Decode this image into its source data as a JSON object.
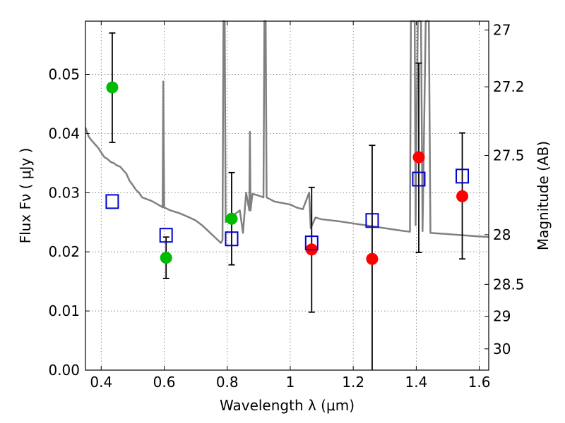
{
  "chart_data": {
    "type": "scatter",
    "xlabel": "Wavelength  λ (μm)",
    "ylabel": "Flux  Fν  ( μJy )",
    "y2label": "Magnitude (AB)",
    "xlim": [
      0.35,
      1.63
    ],
    "ylim": [
      0.0,
      0.059
    ],
    "grid": true,
    "x_ticks": [
      0.4,
      0.6,
      0.8,
      1.0,
      1.2,
      1.4,
      1.6
    ],
    "x_tick_labels": [
      "0.4",
      "0.6",
      "0.8",
      "1",
      "1.2",
      "1.4",
      "1.6"
    ],
    "y_ticks": [
      0.0,
      0.01,
      0.02,
      0.03,
      0.04,
      0.05
    ],
    "y_tick_labels": [
      "0.00",
      "0.01",
      "0.02",
      "0.03",
      "0.04",
      "0.05"
    ],
    "y2_ticks": [
      {
        "label": "27",
        "flux": 0.0575
      },
      {
        "label": "27.2",
        "flux": 0.0479
      },
      {
        "label": "27.5",
        "flux": 0.0363
      },
      {
        "label": "28",
        "flux": 0.0229
      },
      {
        "label": "28.5",
        "flux": 0.0145
      },
      {
        "label": "29",
        "flux": 0.0091
      },
      {
        "label": "30",
        "flux": 0.0036
      }
    ],
    "colors": {
      "green": "#00bb00",
      "red": "#ff0000",
      "model_box": "#0000cc",
      "sed": "#808080",
      "errorbar": "#000000"
    },
    "series": [
      {
        "marker": "circle",
        "color": "green",
        "points": [
          {
            "x": 0.435,
            "y": 0.0478,
            "ylo": 0.0385,
            "yhi": 0.057
          },
          {
            "x": 0.606,
            "y": 0.019,
            "ylo": 0.0155,
            "yhi": 0.0225
          },
          {
            "x": 0.814,
            "y": 0.0256,
            "ylo": 0.0178,
            "yhi": 0.0334
          }
        ]
      },
      {
        "marker": "circle",
        "color": "red",
        "points": [
          {
            "x": 1.068,
            "y": 0.0204,
            "ylo": 0.0098,
            "yhi": 0.0309
          },
          {
            "x": 1.26,
            "y": 0.0188,
            "ylo": 0.0,
            "yhi": 0.038
          },
          {
            "x": 1.408,
            "y": 0.036,
            "ylo": 0.0199,
            "yhi": 0.0519
          },
          {
            "x": 1.546,
            "y": 0.0294,
            "ylo": 0.0188,
            "yhi": 0.0401
          }
        ]
      },
      {
        "marker": "square",
        "color": "model_box",
        "points": [
          {
            "x": 0.435,
            "y": 0.0285
          },
          {
            "x": 0.606,
            "y": 0.0228
          },
          {
            "x": 0.814,
            "y": 0.0222
          },
          {
            "x": 1.068,
            "y": 0.0215
          },
          {
            "x": 1.26,
            "y": 0.0253
          },
          {
            "x": 1.408,
            "y": 0.0323
          },
          {
            "x": 1.546,
            "y": 0.0328
          }
        ]
      },
      {
        "marker": "line",
        "color": "sed",
        "points": [
          [
            0.35,
            0.041
          ],
          [
            0.36,
            0.0395
          ],
          [
            0.37,
            0.0388
          ],
          [
            0.38,
            0.0382
          ],
          [
            0.39,
            0.0376
          ],
          [
            0.4,
            0.0368
          ],
          [
            0.41,
            0.036
          ],
          [
            0.42,
            0.0357
          ],
          [
            0.43,
            0.0352
          ],
          [
            0.44,
            0.035
          ],
          [
            0.45,
            0.0346
          ],
          [
            0.46,
            0.0344
          ],
          [
            0.47,
            0.0338
          ],
          [
            0.48,
            0.0332
          ],
          [
            0.49,
            0.032
          ],
          [
            0.5,
            0.0313
          ],
          [
            0.51,
            0.0305
          ],
          [
            0.52,
            0.03
          ],
          [
            0.53,
            0.0292
          ],
          [
            0.54,
            0.029
          ],
          [
            0.55,
            0.0288
          ],
          [
            0.56,
            0.0286
          ],
          [
            0.57,
            0.0283
          ],
          [
            0.58,
            0.028
          ],
          [
            0.59,
            0.0277
          ],
          [
            0.595,
            0.0275
          ],
          [
            0.597,
            0.0488
          ],
          [
            0.6,
            0.0275
          ],
          [
            0.62,
            0.027
          ],
          [
            0.65,
            0.0265
          ],
          [
            0.68,
            0.0258
          ],
          [
            0.7,
            0.0253
          ],
          [
            0.72,
            0.0245
          ],
          [
            0.74,
            0.0235
          ],
          [
            0.76,
            0.0225
          ],
          [
            0.78,
            0.0215
          ],
          [
            0.785,
            0.022
          ],
          [
            0.788,
            0.06
          ],
          [
            0.792,
            0.06
          ],
          [
            0.795,
            0.025
          ],
          [
            0.8,
            0.0256
          ],
          [
            0.82,
            0.0262
          ],
          [
            0.84,
            0.027
          ],
          [
            0.85,
            0.0232
          ],
          [
            0.86,
            0.03
          ],
          [
            0.87,
            0.027
          ],
          [
            0.872,
            0.0403
          ],
          [
            0.874,
            0.027
          ],
          [
            0.88,
            0.0298
          ],
          [
            0.9,
            0.0295
          ],
          [
            0.915,
            0.0292
          ],
          [
            0.918,
            0.06
          ],
          [
            0.922,
            0.06
          ],
          [
            0.925,
            0.0292
          ],
          [
            0.95,
            0.0285
          ],
          [
            1.0,
            0.028
          ],
          [
            1.02,
            0.0275
          ],
          [
            1.04,
            0.0272
          ],
          [
            1.06,
            0.03
          ],
          [
            1.065,
            0.024
          ],
          [
            1.08,
            0.0258
          ],
          [
            1.1,
            0.0255
          ],
          [
            1.15,
            0.0252
          ],
          [
            1.2,
            0.0248
          ],
          [
            1.25,
            0.0244
          ],
          [
            1.3,
            0.024
          ],
          [
            1.35,
            0.0236
          ],
          [
            1.38,
            0.0234
          ],
          [
            1.383,
            0.06
          ],
          [
            1.395,
            0.06
          ],
          [
            1.398,
            0.0245
          ],
          [
            1.405,
            0.06
          ],
          [
            1.415,
            0.06
          ],
          [
            1.42,
            0.0235
          ],
          [
            1.43,
            0.06
          ],
          [
            1.44,
            0.06
          ],
          [
            1.445,
            0.0232
          ],
          [
            1.5,
            0.023
          ],
          [
            1.55,
            0.0228
          ],
          [
            1.6,
            0.0226
          ],
          [
            1.63,
            0.0225
          ]
        ]
      }
    ]
  }
}
